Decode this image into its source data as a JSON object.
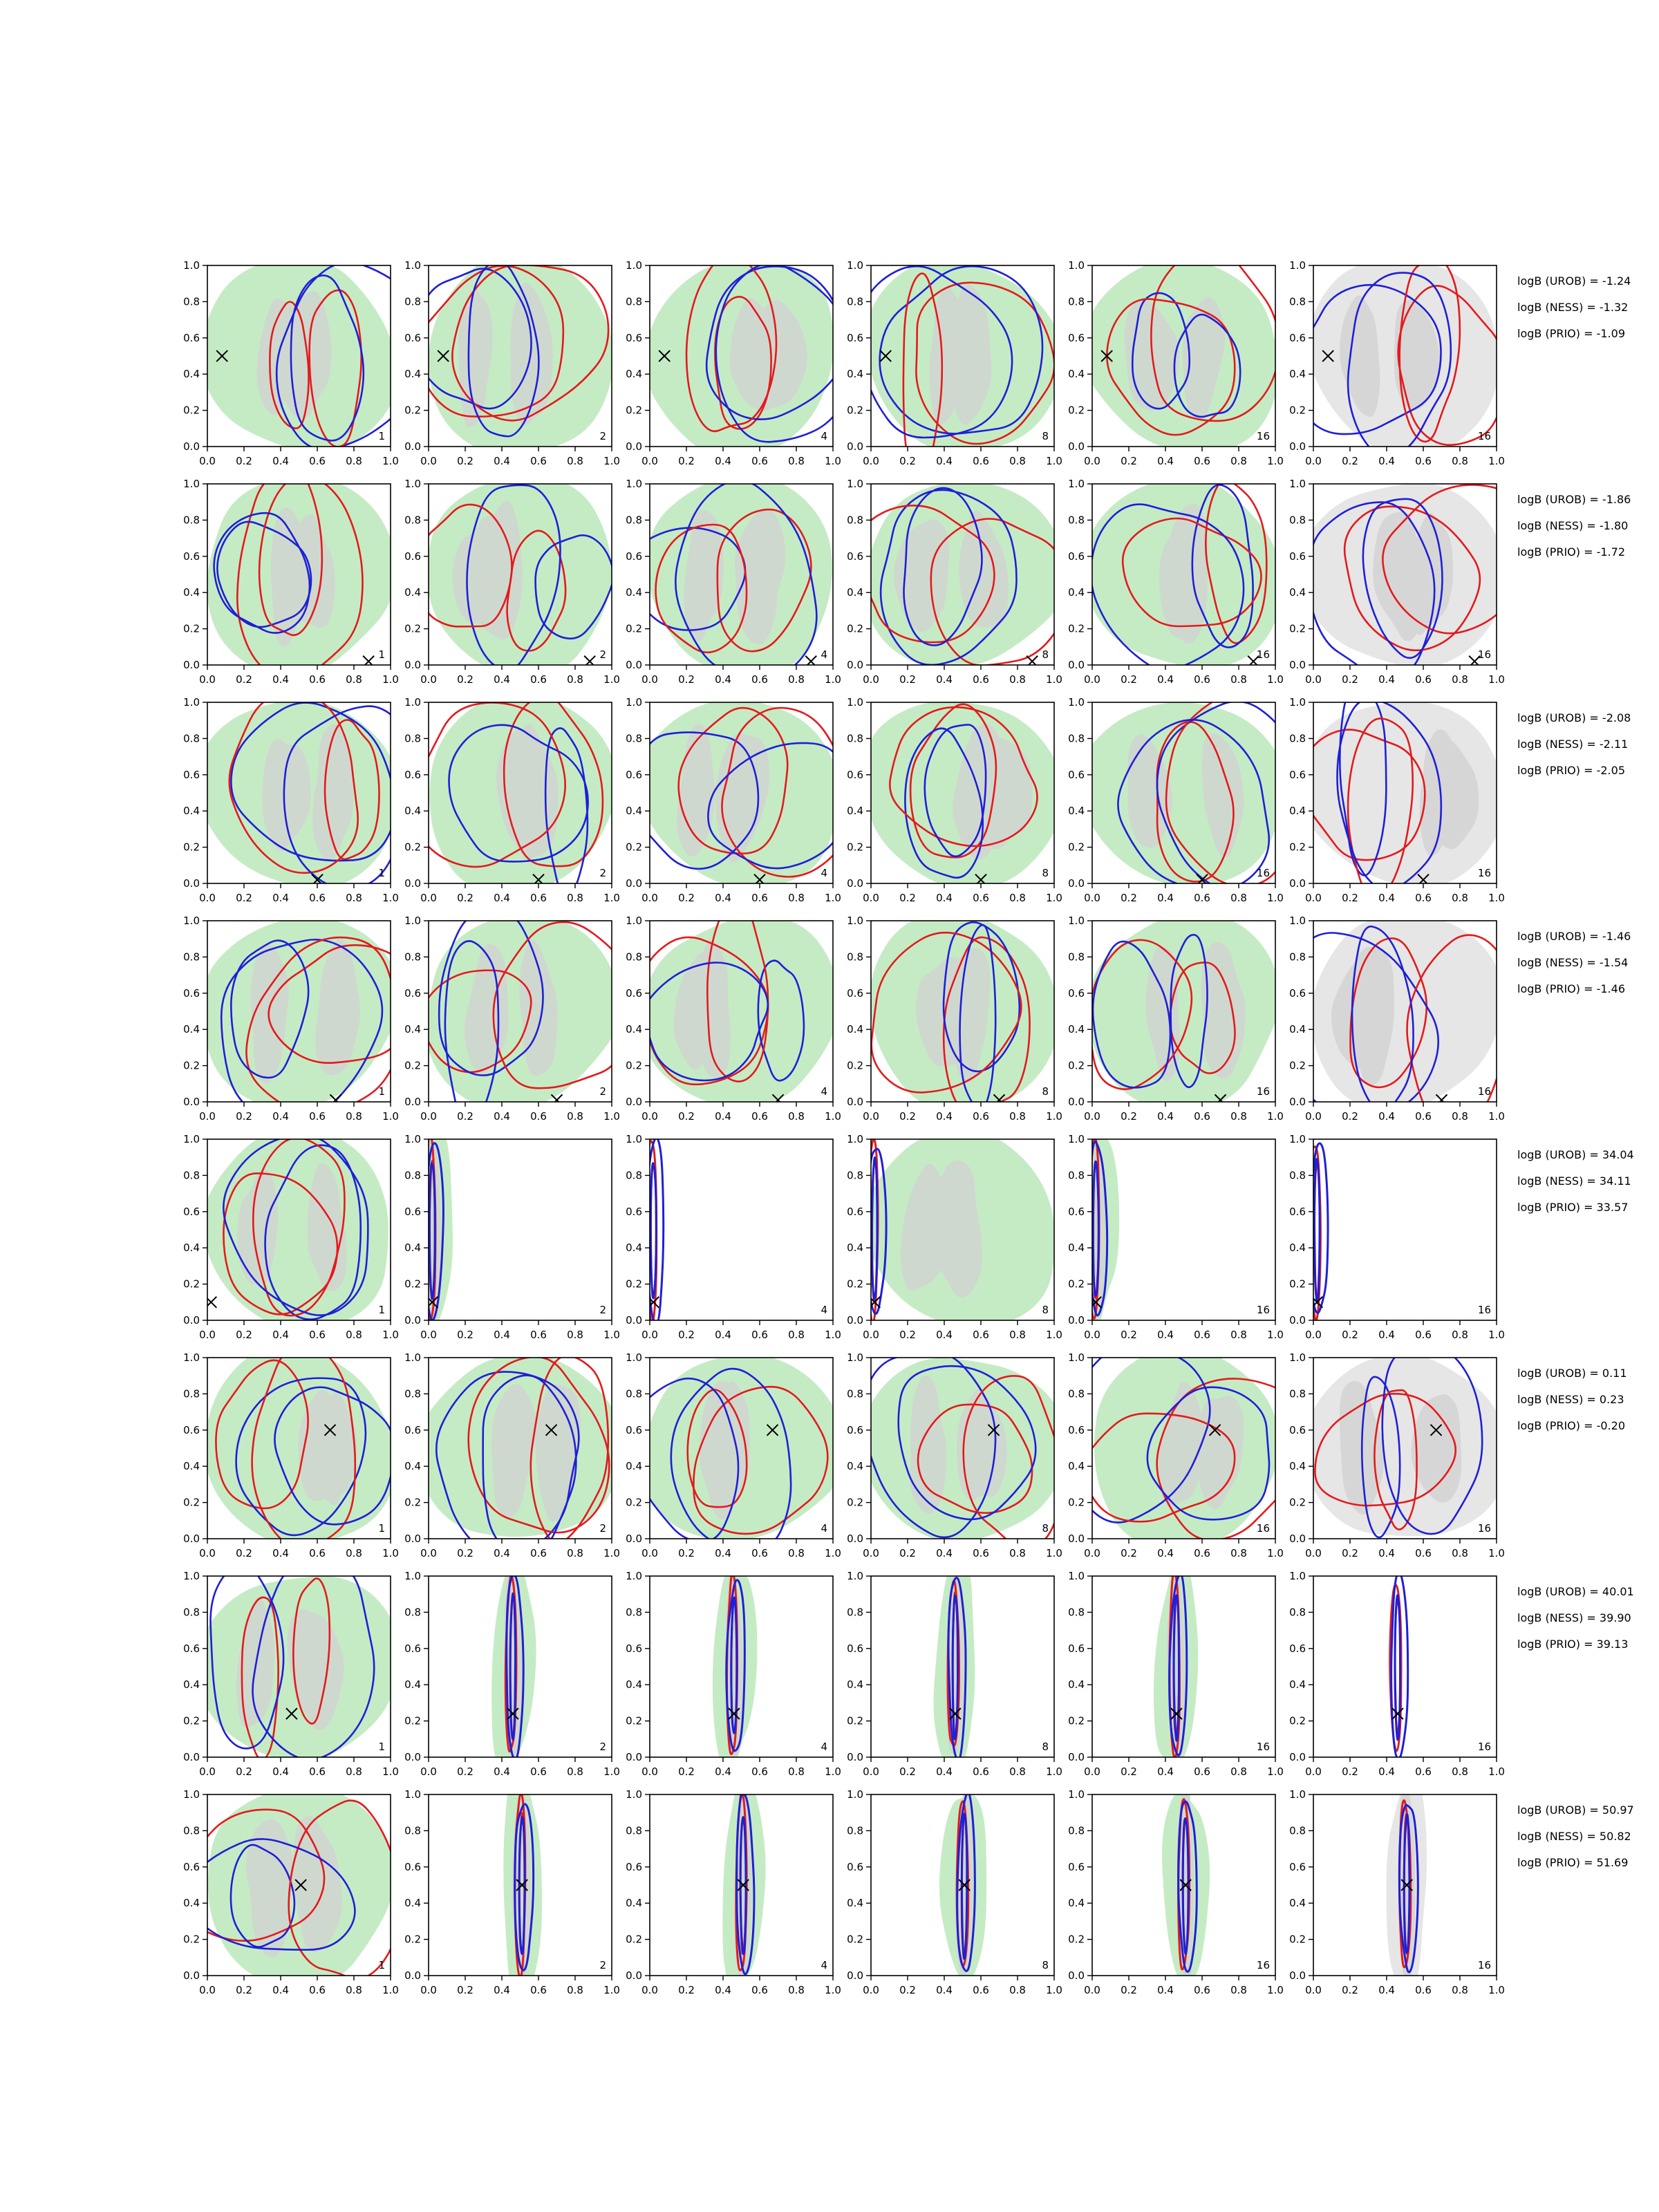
{
  "figure": {
    "axis_ticks": [
      "0.0",
      "0.2",
      "0.4",
      "0.6",
      "0.8",
      "1.0"
    ],
    "colors": {
      "posterior_fill": "#c5ebc5",
      "posterior_core": "#cfd8cf",
      "prior_fill": "#e6e6e6",
      "prior_core": "#d6d6d6",
      "contour_red": "#e31a1c",
      "contour_blue": "#1f1fd6",
      "marker": "#000000"
    }
  },
  "chart_data": [
    {
      "type": "contour",
      "row": 1,
      "truth": [
        0.08,
        0.5
      ],
      "panels": [
        "1",
        "2",
        "4",
        "8",
        "16",
        "16"
      ],
      "logB": [
        "logB (UROB) = -1.24",
        "logB (NESS) = -1.32",
        "logB (PRIO) = -1.09"
      ],
      "xlim": [
        0,
        1
      ],
      "ylim": [
        0,
        1
      ]
    },
    {
      "type": "contour",
      "row": 2,
      "truth": [
        0.88,
        0.02
      ],
      "panels": [
        "1",
        "2",
        "4",
        "8",
        "16",
        "16"
      ],
      "logB": [
        "logB (UROB) = -1.86",
        "logB (NESS) = -1.80",
        "logB (PRIO) = -1.72"
      ],
      "xlim": [
        0,
        1
      ],
      "ylim": [
        0,
        1
      ]
    },
    {
      "type": "contour",
      "row": 3,
      "truth": [
        0.6,
        0.02
      ],
      "panels": [
        "1",
        "2",
        "4",
        "8",
        "16",
        "16"
      ],
      "logB": [
        "logB (UROB) = -2.08",
        "logB (NESS) = -2.11",
        "logB (PRIO) = -2.05"
      ],
      "xlim": [
        0,
        1
      ],
      "ylim": [
        0,
        1
      ]
    },
    {
      "type": "contour",
      "row": 4,
      "truth": [
        0.7,
        0.01
      ],
      "panels": [
        "1",
        "2",
        "4",
        "8",
        "16",
        "16"
      ],
      "logB": [
        "logB (UROB) = -1.46",
        "logB (NESS) = -1.54",
        "logB (PRIO) = -1.46"
      ],
      "xlim": [
        0,
        1
      ],
      "ylim": [
        0,
        1
      ]
    },
    {
      "type": "contour",
      "row": 5,
      "truth": [
        0.02,
        0.1
      ],
      "panels": [
        "1",
        "2",
        "4",
        "8",
        "16",
        "16"
      ],
      "logB": [
        "logB (UROB) = 34.04",
        "logB (NESS) = 34.11",
        "logB (PRIO) = 33.57"
      ],
      "xlim": [
        0,
        1
      ],
      "ylim": [
        0,
        1
      ]
    },
    {
      "type": "contour",
      "row": 6,
      "truth": [
        0.67,
        0.6
      ],
      "panels": [
        "1",
        "2",
        "4",
        "8",
        "16",
        "16"
      ],
      "logB": [
        "logB (UROB) = 0.11",
        "logB (NESS) = 0.23",
        "logB (PRIO) = -0.20"
      ],
      "xlim": [
        0,
        1
      ],
      "ylim": [
        0,
        1
      ]
    },
    {
      "type": "contour",
      "row": 7,
      "truth": [
        0.46,
        0.24
      ],
      "panels": [
        "1",
        "2",
        "4",
        "8",
        "16",
        "16"
      ],
      "logB": [
        "logB (UROB) = 40.01",
        "logB (NESS) = 39.90",
        "logB (PRIO) = 39.13"
      ],
      "xlim": [
        0,
        1
      ],
      "ylim": [
        0,
        1
      ]
    },
    {
      "type": "contour",
      "row": 8,
      "truth": [
        0.51,
        0.5
      ],
      "panels": [
        "1",
        "2",
        "4",
        "8",
        "16",
        "16"
      ],
      "logB": [
        "logB (UROB) = 50.97",
        "logB (NESS) = 50.82",
        "logB (PRIO) = 51.69"
      ],
      "xlim": [
        0,
        1
      ],
      "ylim": [
        0,
        1
      ]
    }
  ]
}
